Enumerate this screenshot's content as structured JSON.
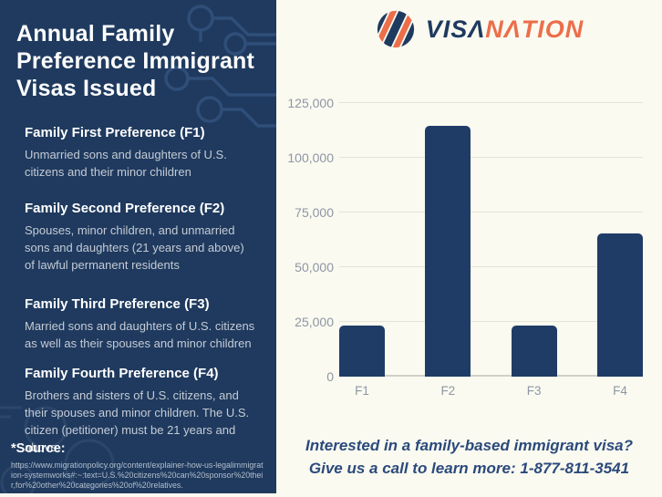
{
  "colors": {
    "sidebar_background": "#1f3a5e",
    "panel_background": "#fafaf0",
    "bar_navy": "#1f3c66",
    "brand_navy": "#1e3a5f",
    "brand_orange": "#ec6e4a",
    "cta_text": "#2b4a7c"
  },
  "sidebar": {
    "title": "Annual Family Preference Immigrant Visas Issued",
    "sections": [
      {
        "heading": "Family First Preference (F1)",
        "body": "Unmarried sons and daughters of U.S. citizens and their minor children"
      },
      {
        "heading": "Family Second Preference (F2)",
        "body": "Spouses, minor children, and unmarried sons and daughters (21 years and above) of lawful permanent residents"
      },
      {
        "heading": "Family Third Preference (F3)",
        "body": "Married sons and daughters of U.S. citizens as well as their spouses and minor children"
      },
      {
        "heading": "Family Fourth Preference (F4)",
        "body": "Brothers and sisters of U.S. citizens, and their spouses and minor children. The U.S. citizen (petitioner) must be 21 years and above."
      }
    ],
    "source_label": "*Source:",
    "source_url": "https://www.migrationpolicy.org/content/explainer-how-us-legalimmigration-systemworks#:~:text=U.S.%20citizens%20can%20sponsor%20their,for%20other%20categories%20of%20relatives."
  },
  "logo": {
    "visa": "VISΛ",
    "nation": "NΛTION"
  },
  "chart_data": {
    "type": "bar",
    "title": "Annual Family Preference Immigrant Visas Issued",
    "categories": [
      "F1",
      "F2",
      "F3",
      "F4"
    ],
    "values": [
      23300,
      114500,
      23300,
      65300
    ],
    "xlabel": "",
    "ylabel": "",
    "ylim": [
      0,
      125000
    ],
    "yticks": [
      {
        "value": 0,
        "label": "0"
      },
      {
        "value": 25000,
        "label": "25,000"
      },
      {
        "value": 50000,
        "label": "50,000"
      },
      {
        "value": 75000,
        "label": "75,000"
      },
      {
        "value": 100000,
        "label": "100,000"
      },
      {
        "value": 125000,
        "label": "125,000"
      }
    ],
    "grid": "horizontal",
    "legend": "none",
    "bar_color": "#1f3c66"
  },
  "cta": {
    "line1": "Interested in a family-based immigrant visa?",
    "line2": "Give us a call to learn more: 1-877-811-3541"
  }
}
